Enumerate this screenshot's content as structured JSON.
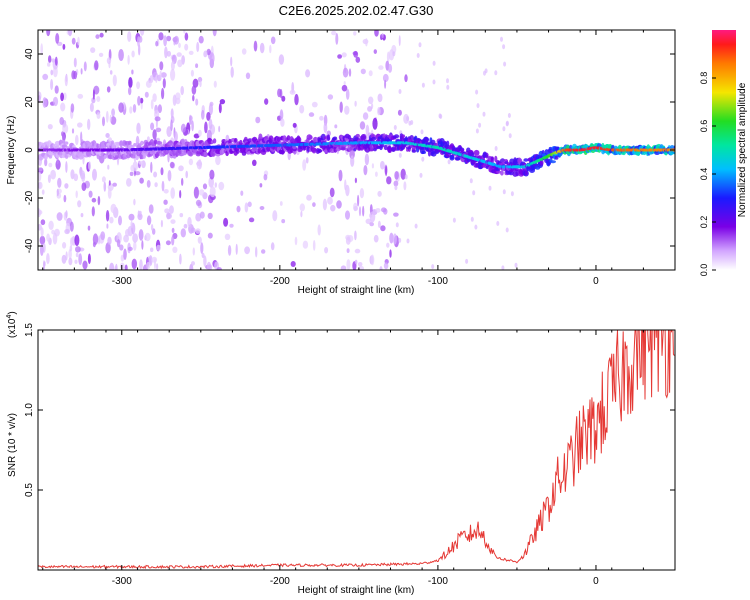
{
  "title": "C2E6.2025.202.02.47.G30",
  "colors": {
    "snr_line": "#e53935",
    "spectrogram_background": "#ffffff",
    "frame": "#000000"
  },
  "chart_data": [
    {
      "type": "heatmap",
      "xlabel": "Height of straight line (km)",
      "ylabel": "Frequency (Hz)",
      "xlim": [
        -353,
        50
      ],
      "ylim": [
        -50,
        50
      ],
      "xticks": [
        -300,
        -200,
        -100,
        0
      ],
      "yticks": [
        -40,
        -20,
        0,
        20,
        40
      ],
      "colorbar": {
        "label": "Normalized spectral amplitude",
        "range": [
          0,
          1
        ],
        "ticks": [
          "0.0",
          "0.2",
          "0.4",
          "0.6",
          "0.8"
        ],
        "colormap": "rainbow (white → purple → blue → cyan → green → yellow → red)"
      },
      "ridge": {
        "description": "Main spectral line frequency vs height",
        "x": [
          -353,
          -300,
          -250,
          -200,
          -150,
          -120,
          -100,
          -80,
          -60,
          -45,
          -35,
          -25,
          -20,
          -10,
          0,
          10,
          30,
          50
        ],
        "freq": [
          0,
          0,
          1,
          2,
          3,
          3,
          1,
          -3,
          -7,
          -7,
          -4,
          -1,
          0,
          0,
          1,
          0,
          0,
          0
        ],
        "peak_amplitude": [
          0.15,
          0.2,
          0.3,
          0.35,
          0.4,
          0.45,
          0.5,
          0.45,
          0.4,
          0.45,
          0.55,
          0.7,
          0.9,
          0.95,
          0.95,
          0.9,
          0.85,
          0.85
        ]
      }
    },
    {
      "type": "line",
      "xlabel": "Height of straight line (km)",
      "ylabel": "SNR (10 * v/v)",
      "multiplier_label": "(x10",
      "multiplier_exp": "4",
      "xlim": [
        -353,
        50
      ],
      "ylim": [
        0,
        1.5
      ],
      "xticks": [
        -300,
        -200,
        -100,
        0
      ],
      "yticks": [
        "0.5",
        "1.0",
        "1.5"
      ],
      "series": [
        {
          "x": [
            -353,
            -300,
            -250,
            -200,
            -150,
            -110,
            -100,
            -95,
            -90,
            -85,
            -80,
            -75,
            -70,
            -65,
            -60,
            -55,
            -50,
            -45,
            -40,
            -35,
            -30,
            -25,
            -20,
            -15,
            -10,
            -5,
            0,
            5,
            10,
            20,
            30,
            40,
            50
          ],
          "values": [
            0.02,
            0.02,
            0.02,
            0.03,
            0.03,
            0.04,
            0.06,
            0.1,
            0.15,
            0.2,
            0.22,
            0.25,
            0.2,
            0.1,
            0.07,
            0.06,
            0.05,
            0.1,
            0.2,
            0.3,
            0.4,
            0.55,
            0.6,
            0.7,
            0.8,
            0.85,
            0.9,
            1.0,
            1.1,
            1.3,
            1.45,
            1.48,
            1.48
          ]
        }
      ]
    }
  ]
}
